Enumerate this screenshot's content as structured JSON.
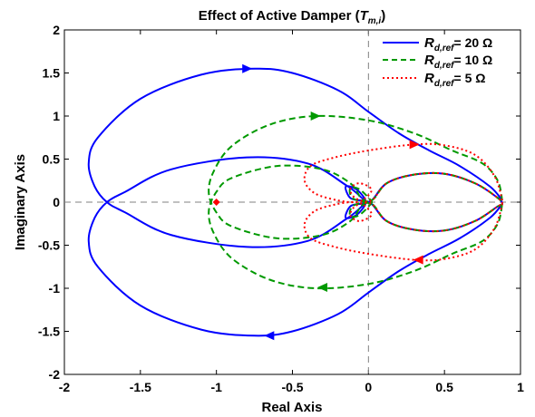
{
  "chart_data": {
    "type": "line",
    "title": {
      "main": "Effect of Active Damper (",
      "sym": "T",
      "sub": "m,i",
      "close": ")"
    },
    "xlabel": "Real Axis",
    "ylabel": "Imaginary Axis",
    "xlim": [
      -2,
      1
    ],
    "ylim": [
      -2,
      2
    ],
    "xticks": [
      "-2",
      "-1.5",
      "-1",
      "-0.5",
      "0",
      "0.5",
      "1"
    ],
    "yticks": [
      "2",
      "1.5",
      "1",
      "0.5",
      "0",
      "-0.5",
      "-1",
      "-1.5",
      "-2"
    ],
    "grid": false,
    "reference_lines": [
      "x = 0",
      "y = 0"
    ],
    "legend_position": "top-right",
    "critical_point": {
      "x": -1,
      "y": 0,
      "color": "#ff0000"
    },
    "series": [
      {
        "name": {
          "sym": "R",
          "sub": "d,ref",
          "val": "= 20 Ω"
        },
        "color": "#0000ff",
        "style": "solid",
        "points": [
          [
            0.88,
            0.02
          ],
          [
            0.8,
            0.18
          ],
          [
            0.6,
            0.42
          ],
          [
            0.4,
            0.6
          ],
          [
            0.2,
            0.8
          ],
          [
            0.0,
            1.05
          ],
          [
            -0.2,
            1.3
          ],
          [
            -0.5,
            1.5
          ],
          [
            -0.75,
            1.55
          ],
          [
            -1.1,
            1.48
          ],
          [
            -1.5,
            1.2
          ],
          [
            -1.78,
            0.75
          ],
          [
            -1.84,
            0.45
          ],
          [
            -1.8,
            0.18
          ],
          [
            -1.72,
            0.0
          ],
          [
            -1.6,
            -0.12
          ],
          [
            -1.3,
            -0.38
          ],
          [
            -0.8,
            -0.52
          ],
          [
            -0.4,
            -0.45
          ],
          [
            -0.15,
            -0.2
          ],
          [
            -0.05,
            -0.06
          ],
          [
            -0.02,
            0.02
          ],
          [
            -0.08,
            0.15
          ],
          [
            -0.15,
            0.18
          ],
          [
            -0.12,
            0.05
          ],
          [
            -0.05,
            0.02
          ],
          [
            0.02,
            0.02
          ],
          [
            0.12,
            0.22
          ],
          [
            0.3,
            0.32
          ],
          [
            0.5,
            0.33
          ],
          [
            0.7,
            0.22
          ],
          [
            0.85,
            0.05
          ],
          [
            0.88,
            -0.02
          ],
          [
            0.85,
            -0.05
          ],
          [
            0.7,
            -0.22
          ],
          [
            0.5,
            -0.33
          ],
          [
            0.3,
            -0.32
          ],
          [
            0.12,
            -0.22
          ],
          [
            0.02,
            -0.02
          ],
          [
            -0.05,
            -0.02
          ],
          [
            -0.12,
            -0.05
          ],
          [
            -0.15,
            -0.18
          ],
          [
            -0.08,
            -0.15
          ],
          [
            -0.02,
            -0.02
          ],
          [
            -0.05,
            0.06
          ],
          [
            -0.15,
            0.2
          ],
          [
            -0.4,
            0.45
          ],
          [
            -0.8,
            0.52
          ],
          [
            -1.3,
            0.38
          ],
          [
            -1.6,
            0.12
          ],
          [
            -1.72,
            0.0
          ],
          [
            -1.8,
            -0.18
          ],
          [
            -1.84,
            -0.45
          ],
          [
            -1.78,
            -0.75
          ],
          [
            -1.5,
            -1.2
          ],
          [
            -1.1,
            -1.48
          ],
          [
            -0.75,
            -1.55
          ],
          [
            -0.5,
            -1.5
          ],
          [
            -0.2,
            -1.3
          ],
          [
            0.0,
            -1.05
          ],
          [
            0.2,
            -0.8
          ],
          [
            0.4,
            -0.6
          ],
          [
            0.6,
            -0.42
          ],
          [
            0.8,
            -0.18
          ],
          [
            0.88,
            -0.02
          ]
        ],
        "arrows": [
          {
            "at": [
              -0.8,
              1.55
            ],
            "dir": "right"
          },
          {
            "at": [
              -0.65,
              -1.55
            ],
            "dir": "left"
          }
        ]
      },
      {
        "name": {
          "sym": "R",
          "sub": "d,ref",
          "val": "= 10 Ω"
        },
        "color": "#009900",
        "style": "dashed",
        "points": [
          [
            0.88,
            0.02
          ],
          [
            0.85,
            0.25
          ],
          [
            0.75,
            0.45
          ],
          [
            0.55,
            0.6
          ],
          [
            0.3,
            0.8
          ],
          [
            0.0,
            0.95
          ],
          [
            -0.35,
            1.0
          ],
          [
            -0.65,
            0.9
          ],
          [
            -0.9,
            0.65
          ],
          [
            -1.02,
            0.35
          ],
          [
            -1.05,
            0.1
          ],
          [
            -1.0,
            -0.12
          ],
          [
            -0.9,
            -0.28
          ],
          [
            -0.6,
            -0.42
          ],
          [
            -0.3,
            -0.38
          ],
          [
            -0.12,
            -0.22
          ],
          [
            -0.05,
            -0.05
          ],
          [
            0.0,
            0.0
          ],
          [
            0.02,
            0.01
          ],
          [
            -0.06,
            0.15
          ],
          [
            -0.12,
            0.16
          ],
          [
            -0.1,
            0.04
          ],
          [
            0.02,
            0.02
          ],
          [
            0.12,
            0.22
          ],
          [
            0.3,
            0.32
          ],
          [
            0.5,
            0.33
          ],
          [
            0.7,
            0.22
          ],
          [
            0.85,
            0.05
          ],
          [
            0.88,
            -0.02
          ],
          [
            0.85,
            -0.05
          ],
          [
            0.7,
            -0.22
          ],
          [
            0.5,
            -0.33
          ],
          [
            0.3,
            -0.32
          ],
          [
            0.12,
            -0.22
          ],
          [
            0.02,
            -0.02
          ],
          [
            -0.1,
            -0.04
          ],
          [
            -0.12,
            -0.16
          ],
          [
            -0.06,
            -0.15
          ],
          [
            0.02,
            -0.01
          ],
          [
            0.0,
            0.0
          ],
          [
            -0.05,
            0.05
          ],
          [
            -0.12,
            0.22
          ],
          [
            -0.3,
            0.38
          ],
          [
            -0.6,
            0.42
          ],
          [
            -0.9,
            0.28
          ],
          [
            -1.0,
            0.12
          ],
          [
            -1.05,
            -0.1
          ],
          [
            -1.02,
            -0.35
          ],
          [
            -0.9,
            -0.65
          ],
          [
            -0.65,
            -0.9
          ],
          [
            -0.35,
            -1.0
          ],
          [
            0.0,
            -0.95
          ],
          [
            0.3,
            -0.8
          ],
          [
            0.55,
            -0.6
          ],
          [
            0.75,
            -0.45
          ],
          [
            0.85,
            -0.25
          ],
          [
            0.88,
            -0.02
          ]
        ],
        "arrows": [
          {
            "at": [
              -0.35,
              1.0
            ],
            "dir": "right"
          },
          {
            "at": [
              -0.3,
              -0.99
            ],
            "dir": "left"
          }
        ]
      },
      {
        "name": {
          "sym": "R",
          "sub": "d,ref",
          "val": "= 5 Ω"
        },
        "color": "#ff0000",
        "style": "dotted",
        "points": [
          [
            0.88,
            0.02
          ],
          [
            0.83,
            0.3
          ],
          [
            0.7,
            0.55
          ],
          [
            0.5,
            0.66
          ],
          [
            0.3,
            0.67
          ],
          [
            0.0,
            0.6
          ],
          [
            -0.22,
            0.52
          ],
          [
            -0.38,
            0.42
          ],
          [
            -0.42,
            0.25
          ],
          [
            -0.35,
            0.1
          ],
          [
            -0.2,
            0.02
          ],
          [
            -0.08,
            0.0
          ],
          [
            -0.02,
            0.05
          ],
          [
            0.02,
            0.15
          ],
          [
            -0.06,
            0.22
          ],
          [
            -0.12,
            0.15
          ],
          [
            -0.08,
            0.04
          ],
          [
            0.02,
            0.02
          ],
          [
            0.12,
            0.22
          ],
          [
            0.3,
            0.32
          ],
          [
            0.5,
            0.33
          ],
          [
            0.7,
            0.22
          ],
          [
            0.85,
            0.05
          ],
          [
            0.88,
            -0.02
          ],
          [
            0.85,
            -0.05
          ],
          [
            0.7,
            -0.22
          ],
          [
            0.5,
            -0.33
          ],
          [
            0.3,
            -0.32
          ],
          [
            0.12,
            -0.22
          ],
          [
            0.02,
            -0.02
          ],
          [
            -0.08,
            -0.04
          ],
          [
            -0.12,
            -0.15
          ],
          [
            -0.06,
            -0.22
          ],
          [
            0.02,
            -0.15
          ],
          [
            -0.02,
            -0.05
          ],
          [
            -0.08,
            0.0
          ],
          [
            -0.2,
            -0.02
          ],
          [
            -0.35,
            -0.1
          ],
          [
            -0.42,
            -0.25
          ],
          [
            -0.38,
            -0.42
          ],
          [
            -0.22,
            -0.52
          ],
          [
            0.0,
            -0.6
          ],
          [
            0.3,
            -0.67
          ],
          [
            0.5,
            -0.66
          ],
          [
            0.7,
            -0.55
          ],
          [
            0.83,
            -0.3
          ],
          [
            0.88,
            -0.02
          ]
        ],
        "arrows": [
          {
            "at": [
              0.3,
              0.67
            ],
            "dir": "right"
          },
          {
            "at": [
              0.33,
              -0.67
            ],
            "dir": "left"
          }
        ]
      }
    ]
  }
}
